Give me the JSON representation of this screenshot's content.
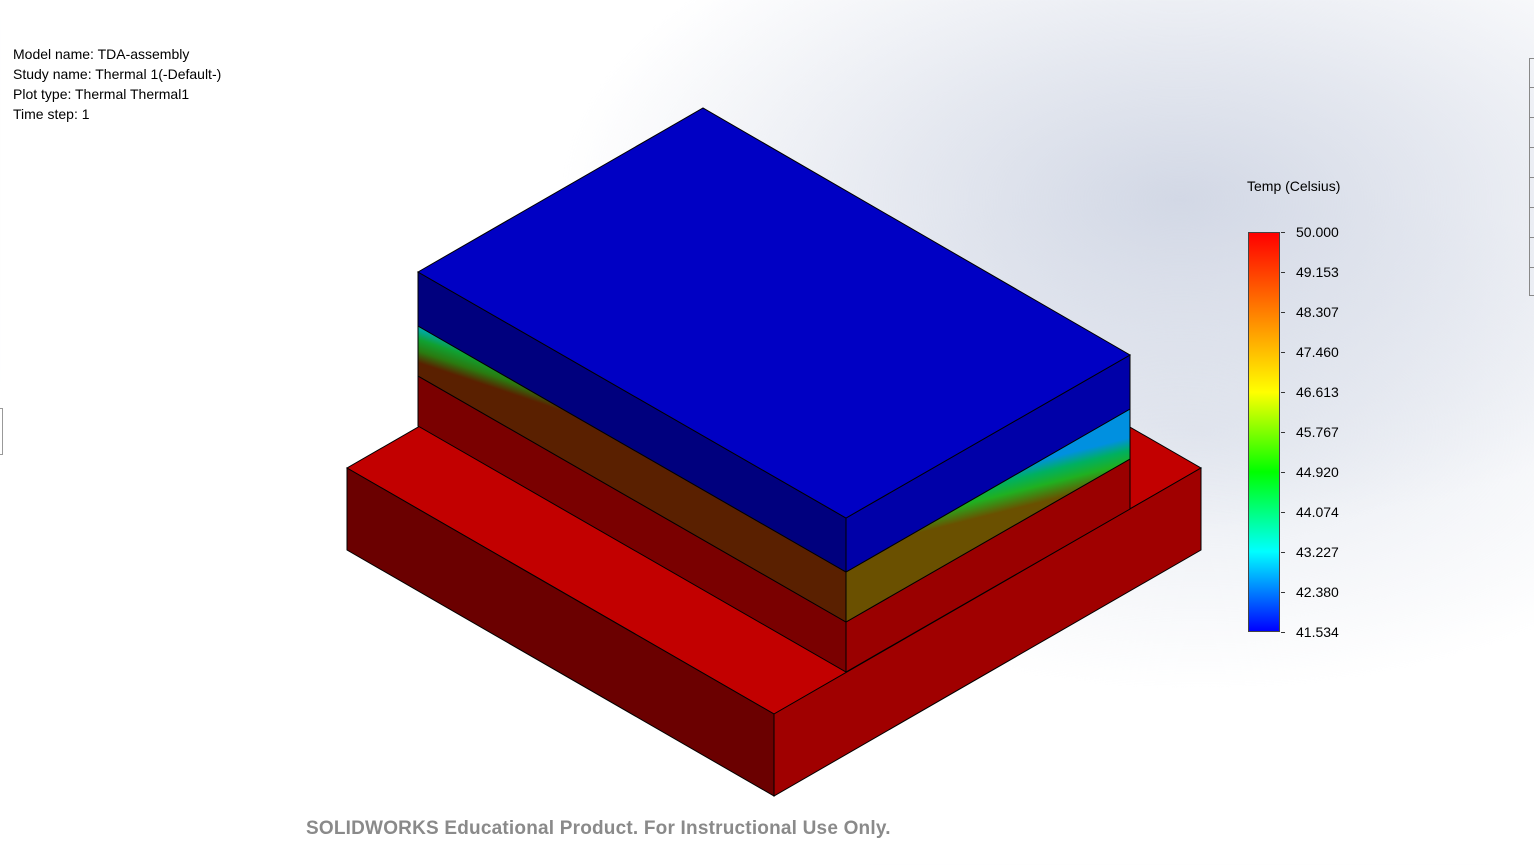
{
  "info": {
    "model_name": "Model name: TDA-assembly",
    "study_name": "Study name: Thermal 1(-Default-)",
    "plot_type": "Plot type: Thermal Thermal1",
    "time_step": "Time step: 1"
  },
  "legend": {
    "title": "Temp (Celsius)",
    "max": 50.0,
    "min": 41.534,
    "ticks": [
      "50.000",
      "49.153",
      "48.307",
      "47.460",
      "46.613",
      "45.767",
      "44.920",
      "44.074",
      "43.227",
      "42.380",
      "41.534"
    ],
    "colormap": [
      "#ff0000",
      "#ff8000",
      "#ffff00",
      "#00ff00",
      "#00ffff",
      "#0000ff"
    ]
  },
  "colors": {
    "hot_top": "#c00000",
    "hot_dark": "#6b0000",
    "hot_mid": "#9a0000",
    "cold_top": "#0000c4",
    "cold_side": "#000080",
    "cold_side_right": "#0000a6"
  },
  "watermark": "SOLIDWORKS Educational Product. For Instructional Use Only."
}
